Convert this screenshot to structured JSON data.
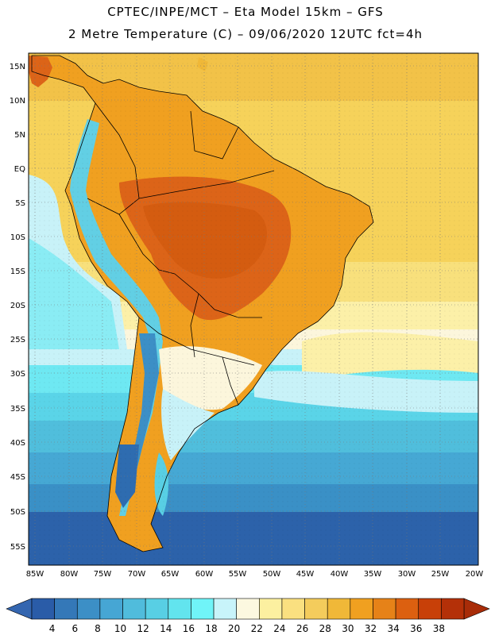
{
  "header": {
    "line1": "CPTEC/INPE/MCT –  Eta Model 15km – GFS",
    "line2": "2 Metre Temperature (C) – 09/06/2020 12UTC fct=4h"
  },
  "map": {
    "lat_labels": [
      "15N",
      "10N",
      "5N",
      "EQ",
      "5S",
      "10S",
      "15S",
      "20S",
      "25S",
      "30S",
      "35S",
      "40S",
      "45S",
      "50S",
      "55S"
    ],
    "lon_labels": [
      "85W",
      "80W",
      "75W",
      "70W",
      "65W",
      "60W",
      "55W",
      "50W",
      "45W",
      "40W",
      "35W",
      "30W",
      "25W",
      "20W"
    ]
  },
  "colorbar": {
    "labels": [
      "4",
      "6",
      "8",
      "10",
      "12",
      "14",
      "16",
      "18",
      "20",
      "22",
      "24",
      "26",
      "28",
      "30",
      "32",
      "34",
      "36",
      "38"
    ],
    "colors": [
      "#2a5ca8",
      "#3478b8",
      "#3c8fc6",
      "#46a6d4",
      "#50bcdc",
      "#58cfe4",
      "#62e4ee",
      "#70f4f8",
      "#c8f4fa",
      "#fcf8e0",
      "#fcf0a0",
      "#fae080",
      "#f4cc5c",
      "#f0b838",
      "#f0a020",
      "#e68218",
      "#dc6010",
      "#c84008",
      "#b43008"
    ],
    "min_color": "#3466b0",
    "max_color": "#a82c08"
  }
}
